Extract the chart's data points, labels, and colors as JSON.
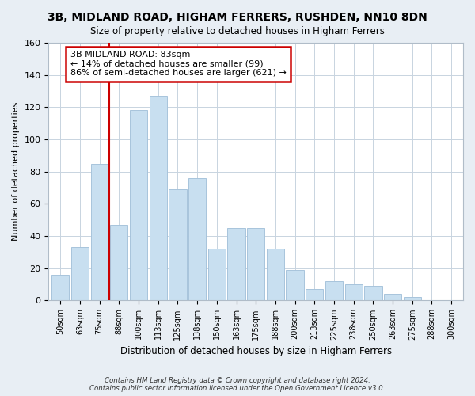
{
  "title": "3B, MIDLAND ROAD, HIGHAM FERRERS, RUSHDEN, NN10 8DN",
  "subtitle": "Size of property relative to detached houses in Higham Ferrers",
  "xlabel": "Distribution of detached houses by size in Higham Ferrers",
  "ylabel": "Number of detached properties",
  "bar_labels": [
    "50sqm",
    "63sqm",
    "75sqm",
    "88sqm",
    "100sqm",
    "113sqm",
    "125sqm",
    "138sqm",
    "150sqm",
    "163sqm",
    "175sqm",
    "188sqm",
    "200sqm",
    "213sqm",
    "225sqm",
    "238sqm",
    "250sqm",
    "263sqm",
    "275sqm",
    "288sqm",
    "300sqm"
  ],
  "bar_values": [
    16,
    33,
    85,
    47,
    118,
    127,
    69,
    76,
    32,
    45,
    45,
    32,
    19,
    7,
    12,
    10,
    9,
    4,
    2,
    0,
    0
  ],
  "bar_color": "#c8dff0",
  "bar_edge_color": "#a8c4dc",
  "annotation_text_line1": "3B MIDLAND ROAD: 83sqm",
  "annotation_text_line2": "← 14% of detached houses are smaller (99)",
  "annotation_text_line3": "86% of semi-detached houses are larger (621) →",
  "annotation_box_facecolor": "#ffffff",
  "annotation_box_edgecolor": "#cc0000",
  "vline_color": "#cc0000",
  "ylim": [
    0,
    160
  ],
  "yticks": [
    0,
    20,
    40,
    60,
    80,
    100,
    120,
    140,
    160
  ],
  "footnote1": "Contains HM Land Registry data © Crown copyright and database right 2024.",
  "footnote2": "Contains public sector information licensed under the Open Government Licence v3.0.",
  "bg_color": "#e8eef4",
  "plot_bg_color": "#ffffff",
  "grid_color": "#c8d4e0",
  "title_fontsize": 10,
  "subtitle_fontsize": 9
}
